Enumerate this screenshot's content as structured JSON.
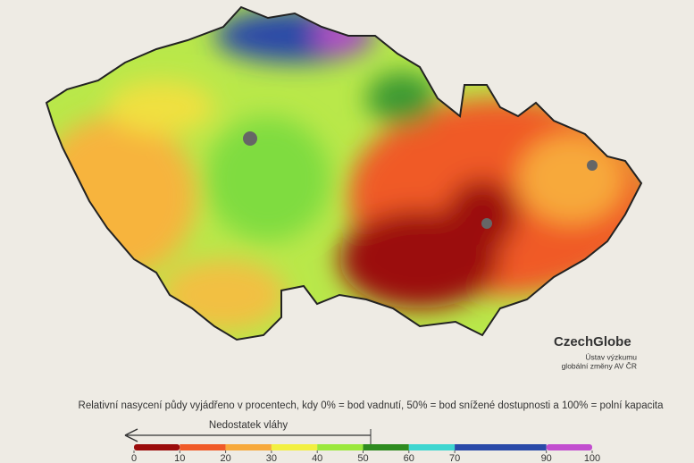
{
  "caption": "Relativní nasycení půdy vyjádřeno v procentech, kdy 0% = bod vadnutí, 50% = bod snížené dostupnosti a 100% = polní kapacita",
  "arrow_label": "Nedostatek vláhy",
  "logo": {
    "name": "CzechGlobe",
    "line1": "Ústav výzkumu",
    "line2": "globální změny AV ČR"
  },
  "legend": {
    "ticks": [
      0,
      10,
      20,
      30,
      40,
      50,
      60,
      70,
      90,
      100
    ],
    "bins": [
      {
        "from": 0,
        "to": 10,
        "color": "#9b0c0c"
      },
      {
        "from": 10,
        "to": 20,
        "color": "#f05a28"
      },
      {
        "from": 20,
        "to": 30,
        "color": "#f7a93b"
      },
      {
        "from": 30,
        "to": 40,
        "color": "#f2f042"
      },
      {
        "from": 40,
        "to": 50,
        "color": "#9be83c"
      },
      {
        "from": 50,
        "to": 60,
        "color": "#2e8b1f"
      },
      {
        "from": 60,
        "to": 70,
        "color": "#3fd6d0"
      },
      {
        "from": 70,
        "to": 90,
        "color": "#2a4aa8"
      },
      {
        "from": 90,
        "to": 100,
        "color": "#c24ecf"
      }
    ]
  }
}
